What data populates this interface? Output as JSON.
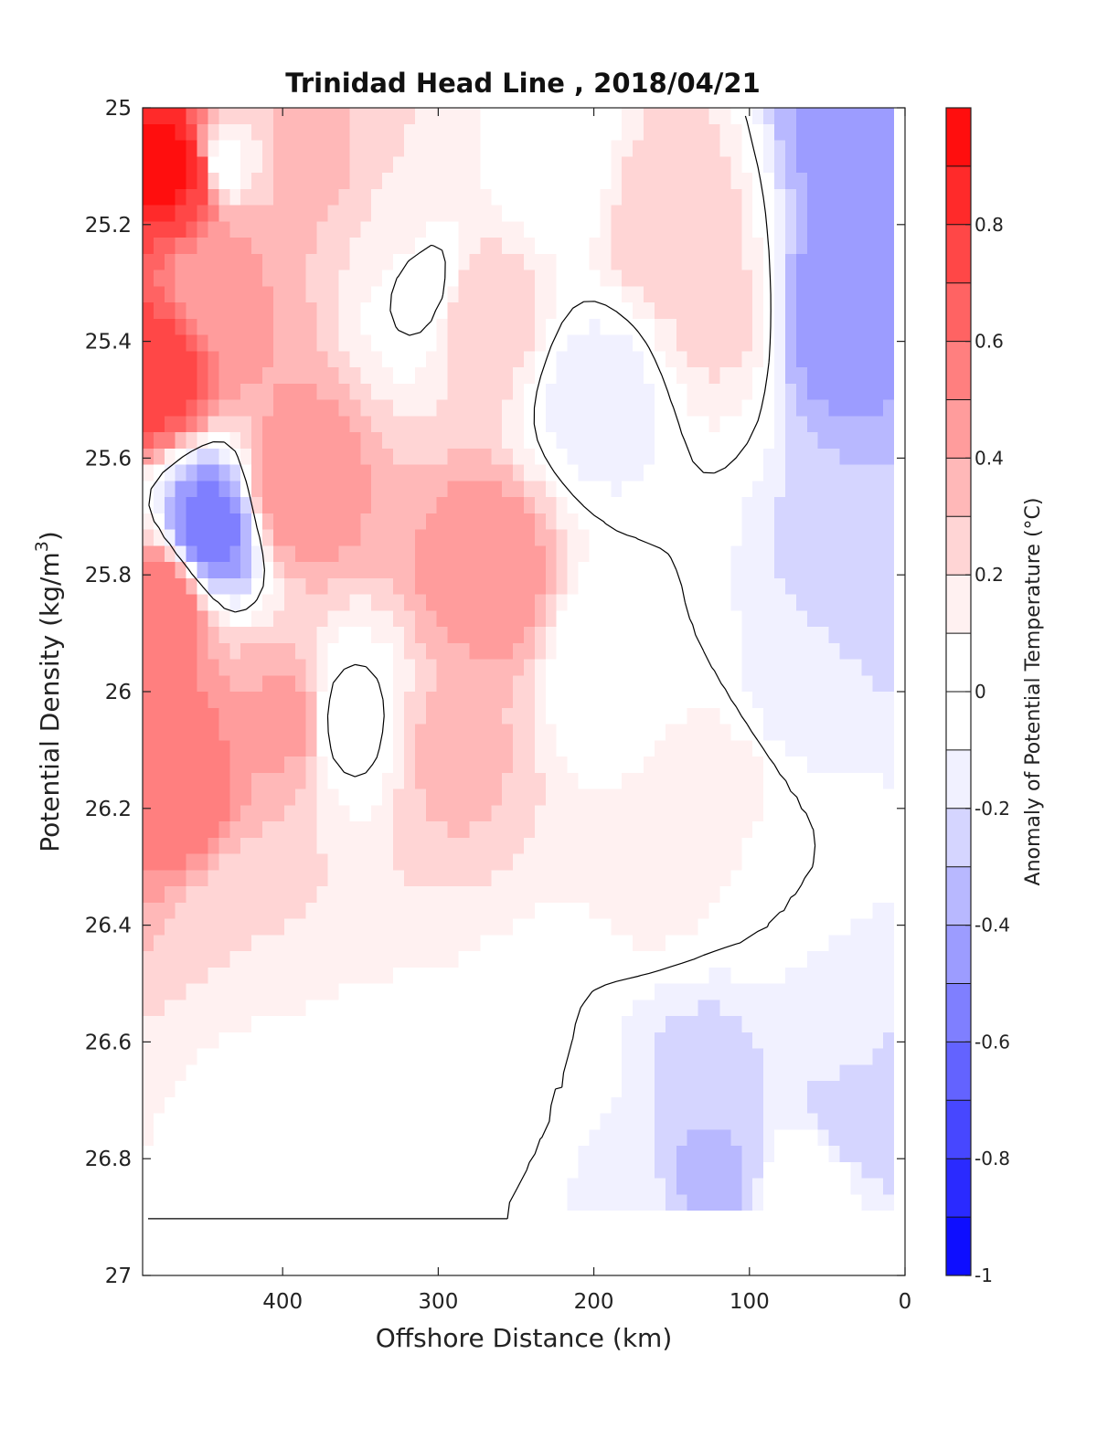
{
  "chart_data": {
    "type": "heatmap",
    "title": "Trinidad Head Line , 2018/04/21",
    "xlabel": "Offshore Distance (km)",
    "ylabel": "Potential Density (kg/m³)",
    "ylabel_base": "Potential Density (kg/m",
    "ylabel_sup": "3",
    "ylabel_close": ")",
    "colorbar_label": "Anomaly of Potential Temperature (°C)",
    "xlim": [
      490,
      0
    ],
    "ylim": [
      25,
      27
    ],
    "x_ticks": [
      400,
      300,
      200,
      100,
      0
    ],
    "x_tick_labels": [
      "400",
      "300",
      "200",
      "100",
      "0"
    ],
    "y_ticks": [
      25,
      25.2,
      25.4,
      25.6,
      25.8,
      26,
      26.2,
      26.4,
      26.6,
      26.8,
      27
    ],
    "y_tick_labels": [
      "25",
      "25.2",
      "25.4",
      "25.6",
      "25.8",
      "26",
      "26.2",
      "26.4",
      "26.6",
      "26.8",
      "27"
    ],
    "colorbar_range": [
      -1,
      1
    ],
    "colorbar_ticks": [
      0.8,
      0.6,
      0.4,
      0.2,
      0,
      -0.2,
      -0.4,
      -0.6,
      -0.8,
      -1
    ],
    "colorbar_tick_labels": [
      "0.8",
      "0.6",
      "0.4",
      "0.2",
      "0",
      "-0.2",
      "-0.4",
      "-0.6",
      "-0.8",
      "-1"
    ],
    "contour_levels": [
      -1.0,
      -0.9,
      -0.8,
      -0.7,
      -0.6,
      -0.5,
      -0.4,
      -0.3,
      -0.2,
      -0.1,
      0.0,
      0.1,
      0.2,
      0.3,
      0.4,
      0.5,
      0.6,
      0.7,
      0.8,
      0.9,
      1.0
    ],
    "colormap": {
      "negative_end": "#0000ff",
      "zero_band": "#ffffff",
      "positive_end": "#ff0000"
    },
    "contour_line_level": 0,
    "contour_line_color": "#000000",
    "data_max_density": 26.9,
    "grid": false,
    "features": [
      {
        "x": 470,
        "y": 25.1,
        "value": 0.98
      },
      {
        "x": 455,
        "y": 25.12,
        "value": 0.8
      },
      {
        "x": 480,
        "y": 25.45,
        "value": 0.75
      },
      {
        "x": 478,
        "y": 25.85,
        "value": 0.6
      },
      {
        "x": 468,
        "y": 26.15,
        "value": 0.6
      },
      {
        "x": 447,
        "y": 25.72,
        "value": -0.55
      },
      {
        "x": 442,
        "y": 25.3,
        "value": 0.4
      },
      {
        "x": 392,
        "y": 25.65,
        "value": 0.5
      },
      {
        "x": 395,
        "y": 26.05,
        "value": 0.42
      },
      {
        "x": 380,
        "y": 25.1,
        "value": 0.32
      },
      {
        "x": 420,
        "y": 26.4,
        "value": 0.2
      },
      {
        "x": 440,
        "y": 25.1,
        "value": 0.05
      },
      {
        "x": 360,
        "y": 26.05,
        "value": -0.05
      },
      {
        "x": 310,
        "y": 25.3,
        "value": -0.05
      },
      {
        "x": 268,
        "y": 25.8,
        "value": 0.48
      },
      {
        "x": 290,
        "y": 26.1,
        "value": 0.32
      },
      {
        "x": 275,
        "y": 25.35,
        "value": 0.3
      },
      {
        "x": 330,
        "y": 25.2,
        "value": 0.2
      },
      {
        "x": 270,
        "y": 26.65,
        "value": 0.1
      },
      {
        "x": 405,
        "y": 26.7,
        "value": 0.05
      },
      {
        "x": 225,
        "y": 25.1,
        "value": 0.03
      },
      {
        "x": 195,
        "y": 25.5,
        "value": -0.16
      },
      {
        "x": 190,
        "y": 25.95,
        "value": 0.0
      },
      {
        "x": 150,
        "y": 25.2,
        "value": 0.3
      },
      {
        "x": 120,
        "y": 25.35,
        "value": 0.22
      },
      {
        "x": 155,
        "y": 26.3,
        "value": 0.14
      },
      {
        "x": 120,
        "y": 26.2,
        "value": 0.2
      },
      {
        "x": 45,
        "y": 25.35,
        "value": -0.48
      },
      {
        "x": 25,
        "y": 25.05,
        "value": -0.5
      },
      {
        "x": 30,
        "y": 25.8,
        "value": -0.3
      },
      {
        "x": 65,
        "y": 26.0,
        "value": -0.15
      },
      {
        "x": 80,
        "y": 26.3,
        "value": 0.0
      },
      {
        "x": 130,
        "y": 26.65,
        "value": -0.22
      },
      {
        "x": 125,
        "y": 26.82,
        "value": -0.32
      },
      {
        "x": 185,
        "y": 26.85,
        "value": -0.14
      },
      {
        "x": 40,
        "y": 26.6,
        "value": -0.18
      },
      {
        "x": 30,
        "y": 26.72,
        "value": -0.3
      },
      {
        "x": 230,
        "y": 26.7,
        "value": 0.0
      },
      {
        "x": 360,
        "y": 26.75,
        "value": 0.02
      },
      {
        "x": 60,
        "y": 26.85,
        "value": 0.0
      }
    ]
  }
}
